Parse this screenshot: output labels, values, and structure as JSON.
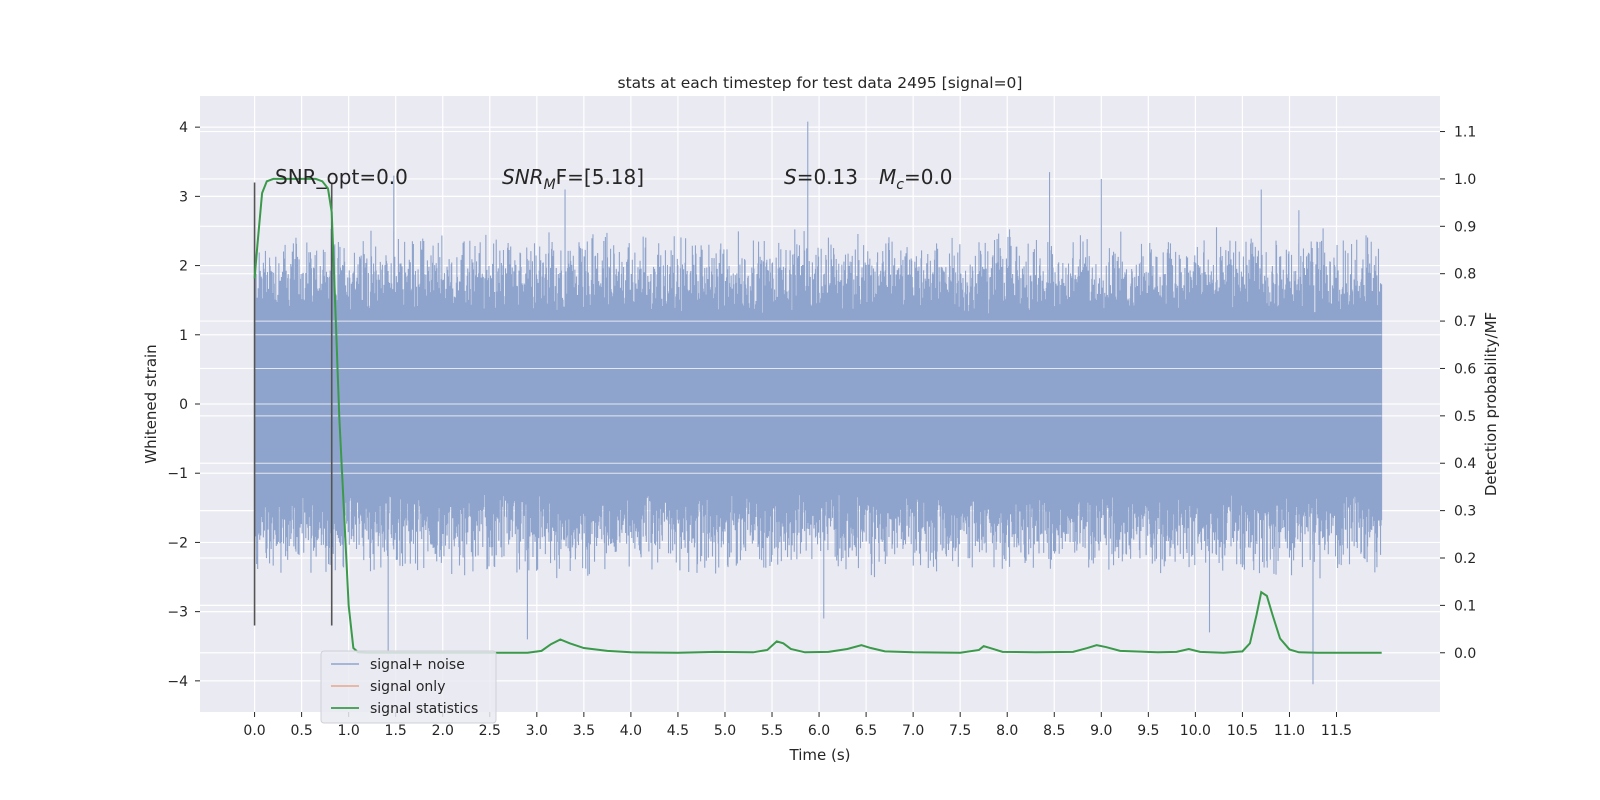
{
  "chart_data": {
    "type": "line",
    "title": "stats at each timestep for test data 2495 [signal=0]",
    "xlabel": "Time (s)",
    "ylabel": "Whitened strain",
    "y2label": "Detection probability/MF",
    "xlim": [
      -0.58,
      12.6
    ],
    "ylim": [
      -4.45,
      4.45
    ],
    "y2lim": [
      -0.125,
      1.175
    ],
    "x_ticks": [
      "0.0",
      "0.5",
      "1.0",
      "1.5",
      "2.0",
      "2.5",
      "3.0",
      "3.5",
      "4.0",
      "4.5",
      "5.0",
      "5.5",
      "6.0",
      "6.5",
      "7.0",
      "7.5",
      "8.0",
      "8.5",
      "9.0",
      "9.5",
      "10.0",
      "10.5",
      "11.0",
      "11.5"
    ],
    "y_ticks": [
      "4",
      "3",
      "2",
      "1",
      "0",
      "−1",
      "−2",
      "−3",
      "−4"
    ],
    "y2_ticks": [
      "1.1",
      "1.0",
      "0.9",
      "0.8",
      "0.7",
      "0.6",
      "0.5",
      "0.4",
      "0.3",
      "0.2",
      "0.1",
      "0.0"
    ],
    "grid": true,
    "legend_position": "lower-left",
    "annotations": {
      "snr_opt": "SNR_opt=0.0",
      "snr_mf_main": "SNR",
      "snr_mf_sub": "M",
      "snr_mf_rest": "F=[5.18]",
      "s_var": "S",
      "s_val": "=0.13",
      "mc_var": "M",
      "mc_sub": "c",
      "mc_val": "=0.0"
    },
    "vertical_markers": {
      "x": [
        0.0,
        0.82
      ],
      "y_range": [
        -3.2,
        3.2
      ],
      "color": "#555555"
    },
    "colors": {
      "plot_bg": "#eaeaf2",
      "grid": "#ffffff",
      "noise": "#8fa4cc",
      "signal": "#e8a88c",
      "stats": "#3a9a4a"
    },
    "series": [
      {
        "name": "signal+ noise",
        "kind": "noise-envelope",
        "x_range": [
          0.0,
          11.98
        ],
        "core_amplitude": 1.3,
        "typical_extreme": 2.4,
        "peaks": [
          [
            1.48,
            3.3
          ],
          [
            5.88,
            4.08
          ],
          [
            9.0,
            3.25
          ],
          [
            8.45,
            3.35
          ],
          [
            3.3,
            3.1
          ],
          [
            10.7,
            3.1
          ],
          [
            11.1,
            2.8
          ]
        ],
        "troughs": [
          [
            1.42,
            -3.6
          ],
          [
            11.25,
            -4.05
          ],
          [
            2.9,
            -3.4
          ],
          [
            10.15,
            -3.3
          ],
          [
            6.05,
            -3.1
          ]
        ]
      },
      {
        "name": "signal only",
        "values": []
      },
      {
        "name": "signal statistics",
        "x": [
          0.0,
          0.03,
          0.08,
          0.13,
          0.2,
          0.3,
          0.5,
          0.65,
          0.72,
          0.78,
          0.82,
          0.86,
          0.9,
          0.95,
          1.0,
          1.05,
          1.1,
          1.2,
          1.5,
          2.0,
          2.5,
          2.9,
          3.05,
          3.15,
          3.25,
          3.35,
          3.5,
          3.75,
          4.0,
          4.5,
          4.9,
          5.3,
          5.45,
          5.55,
          5.62,
          5.7,
          5.85,
          6.1,
          6.3,
          6.45,
          6.55,
          6.7,
          7.0,
          7.5,
          7.7,
          7.75,
          7.82,
          7.95,
          8.3,
          8.7,
          8.85,
          8.95,
          9.05,
          9.2,
          9.6,
          9.8,
          9.93,
          10.05,
          10.3,
          10.5,
          10.58,
          10.65,
          10.7,
          10.76,
          10.82,
          10.9,
          11.0,
          11.1,
          11.3,
          11.6,
          11.98
        ],
        "values": [
          0.79,
          0.86,
          0.97,
          0.995,
          1.0,
          1.0,
          1.0,
          1.0,
          0.995,
          0.98,
          0.93,
          0.72,
          0.5,
          0.3,
          0.1,
          0.01,
          0.001,
          0.0,
          0.0,
          0.0,
          0.0,
          0.0,
          0.004,
          0.018,
          0.028,
          0.02,
          0.01,
          0.004,
          0.001,
          0.0,
          0.002,
          0.001,
          0.006,
          0.024,
          0.02,
          0.008,
          0.001,
          0.002,
          0.008,
          0.016,
          0.01,
          0.003,
          0.001,
          0.0,
          0.006,
          0.014,
          0.01,
          0.002,
          0.001,
          0.002,
          0.01,
          0.016,
          0.012,
          0.004,
          0.001,
          0.002,
          0.008,
          0.002,
          0.0,
          0.003,
          0.02,
          0.08,
          0.128,
          0.12,
          0.08,
          0.03,
          0.007,
          0.001,
          0.0,
          0.0,
          0.0
        ]
      }
    ],
    "legend": [
      "signal+ noise",
      "signal only",
      "signal statistics"
    ]
  }
}
